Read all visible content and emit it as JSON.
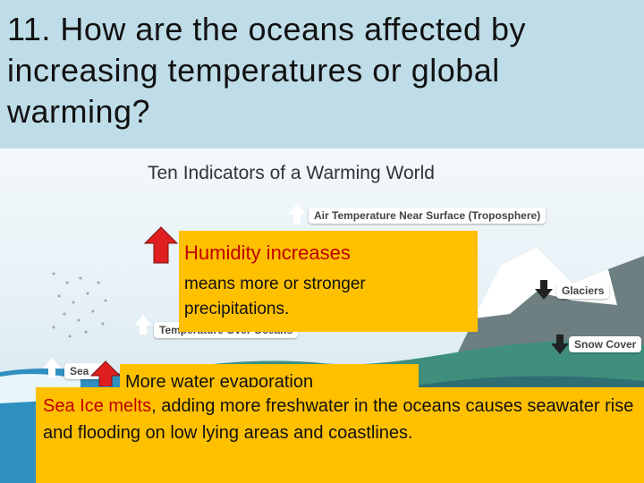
{
  "slide": {
    "title": "11. How are the oceans affected by increasing temperatures or global warming?"
  },
  "figure": {
    "heading": "Ten Indicators of a Warming World",
    "labels": {
      "air_temperature": "Air Temperature Near Surface (Troposphere)",
      "temperature_over_oceans": "Temperature Over Oceans",
      "sea": "Sea",
      "glaciers": "Glaciers",
      "snow_cover": "Snow Cover"
    }
  },
  "callouts": {
    "humidity_heading": "Humidity increases",
    "humidity_body": "means more or stronger precipitations.",
    "evaporation_text": "More water evaporation"
  },
  "bottom": {
    "sea_ice_highlight": "Sea Ice melts",
    "text_rest": ", adding more freshwater in the oceans causes seawater rise and flooding on low lying areas and coastlines."
  },
  "colors": {
    "callout_bg": "#ffc000",
    "highlight_red": "#c00000",
    "arrow_red": "#e02020"
  }
}
